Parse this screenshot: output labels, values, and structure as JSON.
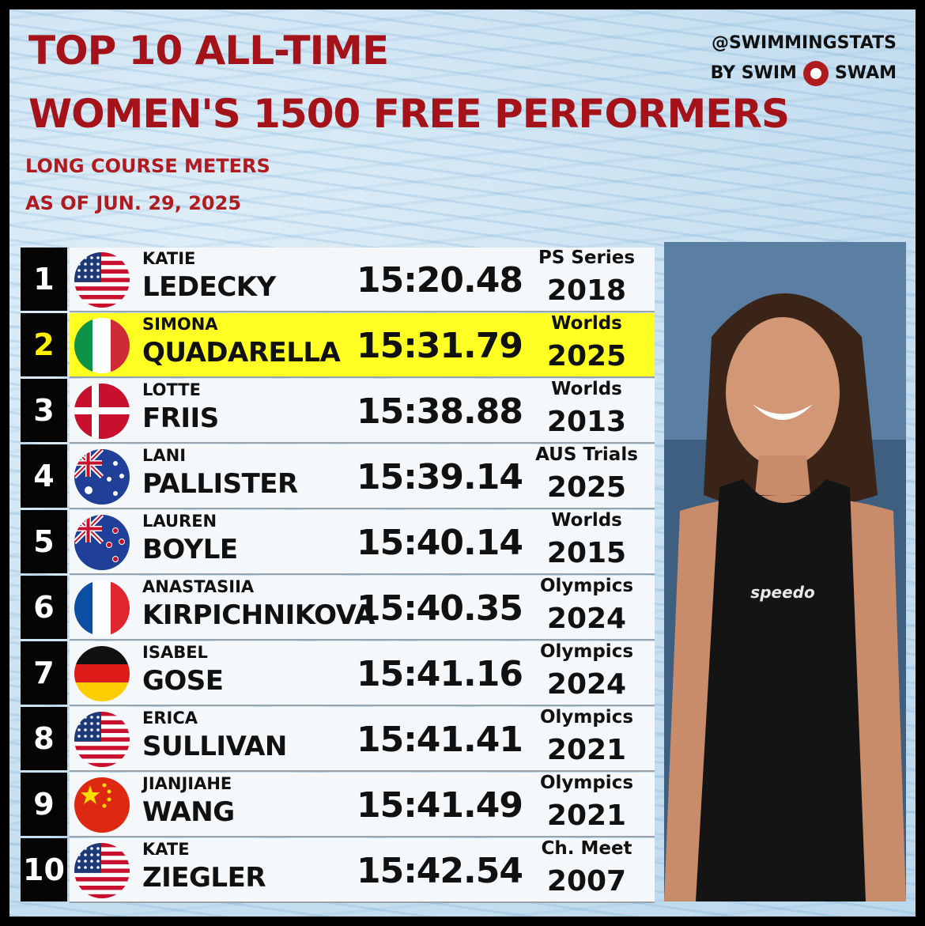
{
  "header": {
    "title_line1": "TOP 10 ALL-TIME",
    "title_line2": "WOMEN'S 1500 FREE PERFORMERS",
    "subtitle_line1": "LONG COURSE METERS",
    "subtitle_line2": "AS OF JUN. 29, 2025",
    "brand_handle": "@SWIMMINGSTATS",
    "brand_by": "BY SWIM",
    "brand_name": "SWAM"
  },
  "rows": [
    {
      "rank": "1",
      "first": "KATIE",
      "last": "LEDECKY",
      "time": "15:20.48",
      "meet": "PS Series",
      "year": "2018",
      "flag": "usa"
    },
    {
      "rank": "2",
      "first": "SIMONA",
      "last": "QUADARELLA",
      "time": "15:31.79",
      "meet": "Worlds",
      "year": "2025",
      "flag": "italy",
      "highlight": true
    },
    {
      "rank": "3",
      "first": "LOTTE",
      "last": "FRIIS",
      "time": "15:38.88",
      "meet": "Worlds",
      "year": "2013",
      "flag": "denmark"
    },
    {
      "rank": "4",
      "first": "LANI",
      "last": "PALLISTER",
      "time": "15:39.14",
      "meet": "AUS Trials",
      "year": "2025",
      "flag": "australia"
    },
    {
      "rank": "5",
      "first": "LAUREN",
      "last": "BOYLE",
      "time": "15:40.14",
      "meet": "Worlds",
      "year": "2015",
      "flag": "new-zealand"
    },
    {
      "rank": "6",
      "first": "ANASTASIIA",
      "last": "KIRPICHNIKOVA",
      "time": "15:40.35",
      "meet": "Olympics",
      "year": "2024",
      "flag": "france"
    },
    {
      "rank": "7",
      "first": "ISABEL",
      "last": "GOSE",
      "time": "15:41.16",
      "meet": "Olympics",
      "year": "2024",
      "flag": "germany"
    },
    {
      "rank": "8",
      "first": "ERICA",
      "last": "SULLIVAN",
      "time": "15:41.41",
      "meet": "Olympics",
      "year": "2021",
      "flag": "usa"
    },
    {
      "rank": "9",
      "first": "JIANJIAHE",
      "last": "WANG",
      "time": "15:41.49",
      "meet": "Olympics",
      "year": "2021",
      "flag": "china"
    },
    {
      "rank": "10",
      "first": "KATE",
      "last": "ZIEGLER",
      "time": "15:42.54",
      "meet": "Ch. Meet",
      "year": "2007",
      "flag": "usa"
    }
  ],
  "photo": {
    "suit_text": "speedo"
  },
  "colors": {
    "title": "#a5131a",
    "highlight": "#ffff24",
    "rank_bg": "#050505",
    "rank_highlight_text": "#ffee00"
  }
}
